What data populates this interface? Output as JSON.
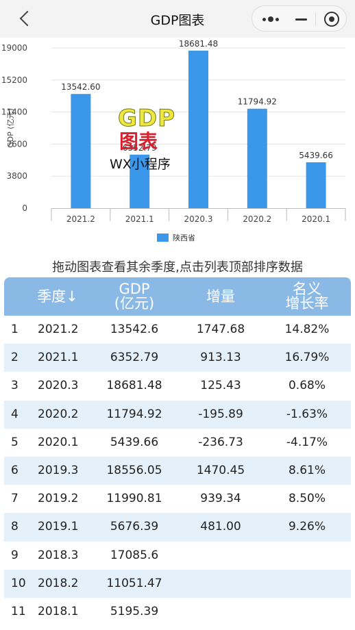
{
  "header": {
    "title": "GDP图表"
  },
  "chart_data": {
    "type": "bar",
    "categories": [
      "2021.2",
      "2021.1",
      "2020.3",
      "2020.2",
      "2020.1"
    ],
    "series": [
      {
        "name": "陕西省",
        "values": [
          13542.6,
          6352.79,
          18681.48,
          11794.92,
          5439.66
        ]
      }
    ],
    "value_labels": [
      "13542.60",
      "6352.79",
      "18681.48",
      "11794.92",
      "5439.66"
    ],
    "ylabel": "GDP (亿元)",
    "yticks": [
      "0",
      "3800",
      "7600",
      "11400",
      "15200",
      "19000"
    ],
    "ylim": [
      0,
      19000
    ],
    "grid": true,
    "legend_position": "bottom",
    "color": "#3b97ea"
  },
  "watermark": {
    "gdp": "GDP",
    "chart": "图表",
    "wx": "WX小程序"
  },
  "hint": "拖动图表查看其余季度,点击列表顶部排序数据",
  "table": {
    "headers": {
      "quarter": "季度↓",
      "gdp_line1": "GDP",
      "gdp_line2": "(亿元)",
      "increase": "增量",
      "rate_line1": "名义",
      "rate_line2": "增长率"
    },
    "rows": [
      {
        "idx": "1",
        "quarter": "2021.2",
        "gdp": "13542.6",
        "increase": "1747.68",
        "rate": "14.82%"
      },
      {
        "idx": "2",
        "quarter": "2021.1",
        "gdp": "6352.79",
        "increase": "913.13",
        "rate": "16.79%"
      },
      {
        "idx": "3",
        "quarter": "2020.3",
        "gdp": "18681.48",
        "increase": "125.43",
        "rate": "0.68%"
      },
      {
        "idx": "4",
        "quarter": "2020.2",
        "gdp": "11794.92",
        "increase": "-195.89",
        "rate": "-1.63%"
      },
      {
        "idx": "5",
        "quarter": "2020.1",
        "gdp": "5439.66",
        "increase": "-236.73",
        "rate": "-4.17%"
      },
      {
        "idx": "6",
        "quarter": "2019.3",
        "gdp": "18556.05",
        "increase": "1470.45",
        "rate": "8.61%"
      },
      {
        "idx": "7",
        "quarter": "2019.2",
        "gdp": "11990.81",
        "increase": "939.34",
        "rate": "8.50%"
      },
      {
        "idx": "8",
        "quarter": "2019.1",
        "gdp": "5676.39",
        "increase": "481.00",
        "rate": "9.26%"
      },
      {
        "idx": "9",
        "quarter": "2018.3",
        "gdp": "17085.6",
        "increase": "",
        "rate": ""
      },
      {
        "idx": "10",
        "quarter": "2018.2",
        "gdp": "11051.47",
        "increase": "",
        "rate": ""
      },
      {
        "idx": "11",
        "quarter": "2018.1",
        "gdp": "5195.39",
        "increase": "",
        "rate": ""
      }
    ]
  }
}
